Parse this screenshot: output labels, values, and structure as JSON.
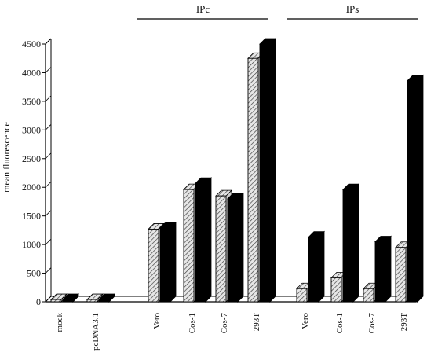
{
  "chart_data": {
    "type": "bar",
    "ylabel": "mean fluorescence",
    "ylim": [
      0,
      4500
    ],
    "yticks": [
      0,
      500,
      1000,
      1500,
      2000,
      2500,
      3000,
      3500,
      4000,
      4500
    ],
    "group_labels": [
      "IPc",
      "IPs"
    ],
    "categories": [
      "mock",
      "pcDNA3.1",
      "Vero",
      "Cos-1",
      "Cos-7",
      "293T",
      "Vero",
      "Cos-1",
      "Cos-7",
      "293T"
    ],
    "series": [
      {
        "pattern": "hatched",
        "color": "#bdbdbd",
        "values": [
          40,
          40,
          1270,
          1960,
          1850,
          4250,
          230,
          420,
          230,
          950
        ]
      },
      {
        "pattern": "solid",
        "color": "#000000",
        "values": [
          40,
          40,
          1290,
          2070,
          1800,
          4500,
          1130,
          1960,
          1050,
          3860
        ]
      }
    ],
    "grid": false,
    "style": "3d"
  }
}
